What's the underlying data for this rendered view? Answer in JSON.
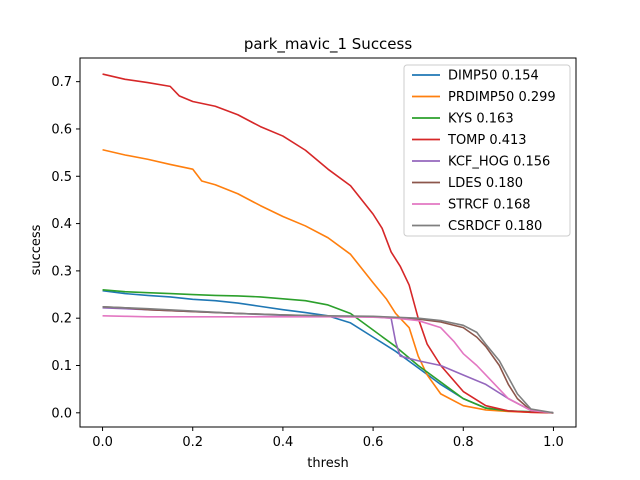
{
  "chart_data": {
    "type": "line",
    "title": "park_mavic_1 Success",
    "xlabel": "thresh",
    "ylabel": "success",
    "xlim": [
      -0.05,
      1.05
    ],
    "ylim": [
      -0.03,
      0.75
    ],
    "xticks": [
      0.0,
      0.2,
      0.4,
      0.6,
      0.8,
      1.0
    ],
    "xtick_labels": [
      "0.0",
      "0.2",
      "0.4",
      "0.6",
      "0.8",
      "1.0"
    ],
    "yticks": [
      0.0,
      0.1,
      0.2,
      0.3,
      0.4,
      0.5,
      0.6,
      0.7
    ],
    "ytick_labels": [
      "0.0",
      "0.1",
      "0.2",
      "0.3",
      "0.4",
      "0.5",
      "0.6",
      "0.7"
    ],
    "grid": false,
    "legend_position": "top-right",
    "series": [
      {
        "name": "DIMP50 0.154",
        "color": "#1f77b4",
        "x": [
          0.0,
          0.05,
          0.1,
          0.15,
          0.2,
          0.25,
          0.3,
          0.35,
          0.4,
          0.45,
          0.5,
          0.55,
          0.6,
          0.65,
          0.7,
          0.75,
          0.8,
          0.85,
          0.9,
          0.95,
          1.0
        ],
        "y": [
          0.258,
          0.252,
          0.248,
          0.245,
          0.24,
          0.237,
          0.232,
          0.225,
          0.218,
          0.212,
          0.205,
          0.19,
          0.16,
          0.13,
          0.095,
          0.06,
          0.03,
          0.01,
          0.004,
          0.002,
          0.0
        ]
      },
      {
        "name": "PRDIMP50 0.299",
        "color": "#ff7f0e",
        "x": [
          0.0,
          0.05,
          0.1,
          0.15,
          0.2,
          0.22,
          0.25,
          0.3,
          0.35,
          0.4,
          0.45,
          0.5,
          0.55,
          0.6,
          0.63,
          0.65,
          0.68,
          0.7,
          0.72,
          0.75,
          0.8,
          0.85,
          0.9,
          0.95,
          1.0
        ],
        "y": [
          0.556,
          0.545,
          0.536,
          0.525,
          0.515,
          0.49,
          0.482,
          0.463,
          0.438,
          0.415,
          0.395,
          0.37,
          0.335,
          0.275,
          0.24,
          0.21,
          0.18,
          0.12,
          0.08,
          0.04,
          0.015,
          0.006,
          0.003,
          0.001,
          0.0
        ]
      },
      {
        "name": "KYS 0.163",
        "color": "#2ca02c",
        "x": [
          0.0,
          0.05,
          0.1,
          0.15,
          0.2,
          0.25,
          0.3,
          0.35,
          0.4,
          0.45,
          0.5,
          0.55,
          0.6,
          0.65,
          0.7,
          0.75,
          0.8,
          0.85,
          0.9,
          0.95,
          1.0
        ],
        "y": [
          0.26,
          0.256,
          0.254,
          0.252,
          0.25,
          0.248,
          0.247,
          0.245,
          0.241,
          0.237,
          0.228,
          0.21,
          0.175,
          0.14,
          0.1,
          0.065,
          0.03,
          0.01,
          0.004,
          0.002,
          0.0
        ]
      },
      {
        "name": "TOMP 0.413",
        "color": "#d62728",
        "x": [
          0.0,
          0.05,
          0.1,
          0.15,
          0.17,
          0.2,
          0.25,
          0.3,
          0.35,
          0.4,
          0.45,
          0.5,
          0.55,
          0.6,
          0.62,
          0.64,
          0.66,
          0.68,
          0.7,
          0.72,
          0.75,
          0.8,
          0.85,
          0.9,
          0.95,
          1.0
        ],
        "y": [
          0.716,
          0.705,
          0.698,
          0.69,
          0.67,
          0.658,
          0.648,
          0.63,
          0.605,
          0.585,
          0.555,
          0.515,
          0.48,
          0.42,
          0.39,
          0.34,
          0.31,
          0.27,
          0.2,
          0.145,
          0.1,
          0.045,
          0.015,
          0.004,
          0.001,
          0.0
        ]
      },
      {
        "name": "KCF_HOG 0.156",
        "color": "#9467bd",
        "x": [
          0.0,
          0.05,
          0.1,
          0.2,
          0.3,
          0.4,
          0.5,
          0.6,
          0.64,
          0.65,
          0.66,
          0.7,
          0.75,
          0.8,
          0.85,
          0.9,
          0.95,
          1.0
        ],
        "y": [
          0.222,
          0.22,
          0.218,
          0.214,
          0.21,
          0.206,
          0.204,
          0.203,
          0.2,
          0.15,
          0.12,
          0.11,
          0.1,
          0.08,
          0.06,
          0.03,
          0.005,
          0.0
        ]
      },
      {
        "name": "LDES 0.180",
        "color": "#8c564b",
        "x": [
          0.0,
          0.05,
          0.1,
          0.2,
          0.3,
          0.4,
          0.5,
          0.6,
          0.7,
          0.75,
          0.8,
          0.83,
          0.85,
          0.88,
          0.9,
          0.92,
          0.95,
          1.0
        ],
        "y": [
          0.224,
          0.222,
          0.218,
          0.214,
          0.21,
          0.207,
          0.204,
          0.203,
          0.198,
          0.192,
          0.18,
          0.16,
          0.14,
          0.1,
          0.06,
          0.03,
          0.005,
          0.0
        ]
      },
      {
        "name": "STRCF 0.168",
        "color": "#e377c2",
        "x": [
          0.0,
          0.05,
          0.1,
          0.2,
          0.3,
          0.4,
          0.5,
          0.6,
          0.65,
          0.7,
          0.75,
          0.78,
          0.8,
          0.83,
          0.85,
          0.88,
          0.9,
          0.95,
          1.0
        ],
        "y": [
          0.205,
          0.204,
          0.203,
          0.203,
          0.203,
          0.203,
          0.203,
          0.202,
          0.2,
          0.195,
          0.18,
          0.15,
          0.125,
          0.1,
          0.08,
          0.05,
          0.03,
          0.005,
          0.0
        ]
      },
      {
        "name": "CSRDCF 0.180",
        "color": "#7f7f7f",
        "x": [
          0.0,
          0.05,
          0.1,
          0.2,
          0.3,
          0.4,
          0.5,
          0.6,
          0.7,
          0.75,
          0.8,
          0.83,
          0.85,
          0.88,
          0.9,
          0.92,
          0.95,
          1.0
        ],
        "y": [
          0.224,
          0.222,
          0.22,
          0.215,
          0.21,
          0.207,
          0.205,
          0.204,
          0.2,
          0.195,
          0.185,
          0.17,
          0.145,
          0.11,
          0.075,
          0.04,
          0.008,
          0.0
        ]
      }
    ]
  }
}
